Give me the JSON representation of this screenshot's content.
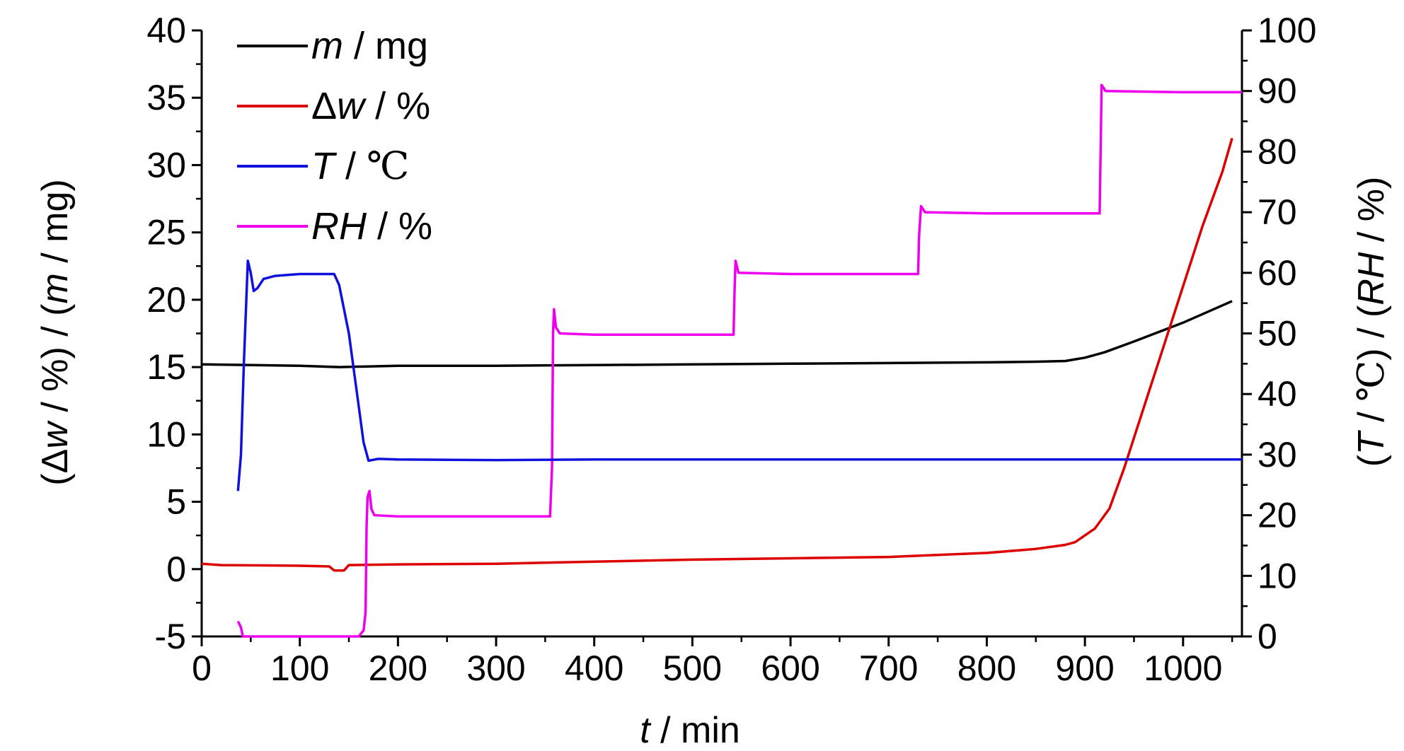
{
  "chart_data": {
    "type": "line",
    "xlabel": {
      "var": "t",
      "unit": " / min"
    },
    "ylabel_left": {
      "open": "(",
      "delta": "Δ",
      "var1": "w",
      "mid": " / %) / (",
      "var2": "m",
      "close": " / mg)"
    },
    "ylabel_right": {
      "open": "(",
      "var1": "T",
      "mid": " / ",
      "unit1": "℃",
      "mid2": ") / (",
      "var2": "RH",
      "close": " / %)"
    },
    "xlim": [
      0,
      1060
    ],
    "xticks": [
      0,
      100,
      200,
      300,
      400,
      500,
      600,
      700,
      800,
      900,
      1000
    ],
    "ylim_left": [
      -5,
      40
    ],
    "yticks_left": [
      -5,
      0,
      5,
      10,
      15,
      20,
      25,
      30,
      35,
      40
    ],
    "ylim_right": [
      0,
      100
    ],
    "yticks_right": [
      0,
      10,
      20,
      30,
      40,
      50,
      60,
      70,
      80,
      90,
      100
    ],
    "legend_position": "top-left",
    "grid": false,
    "series": [
      {
        "var": "m",
        "unit": " / mg",
        "color": "#000000",
        "axis": "left",
        "points": [
          [
            0,
            15.2
          ],
          [
            100,
            15.1
          ],
          [
            140,
            15.0
          ],
          [
            200,
            15.1
          ],
          [
            300,
            15.1
          ],
          [
            400,
            15.15
          ],
          [
            500,
            15.2
          ],
          [
            600,
            15.25
          ],
          [
            700,
            15.3
          ],
          [
            800,
            15.35
          ],
          [
            850,
            15.4
          ],
          [
            880,
            15.45
          ],
          [
            900,
            15.7
          ],
          [
            920,
            16.1
          ],
          [
            950,
            16.9
          ],
          [
            1000,
            18.3
          ],
          [
            1050,
            19.9
          ]
        ]
      },
      {
        "var": "Δw",
        "unit": " / %",
        "color": "#dd0000",
        "axis": "left",
        "points": [
          [
            0,
            0.4
          ],
          [
            20,
            0.3
          ],
          [
            100,
            0.25
          ],
          [
            130,
            0.2
          ],
          [
            135,
            -0.1
          ],
          [
            145,
            -0.1
          ],
          [
            150,
            0.3
          ],
          [
            200,
            0.35
          ],
          [
            300,
            0.4
          ],
          [
            400,
            0.55
          ],
          [
            500,
            0.7
          ],
          [
            600,
            0.8
          ],
          [
            700,
            0.9
          ],
          [
            800,
            1.2
          ],
          [
            850,
            1.5
          ],
          [
            880,
            1.8
          ],
          [
            890,
            2.0
          ],
          [
            910,
            3.0
          ],
          [
            925,
            4.5
          ],
          [
            940,
            7.5
          ],
          [
            960,
            12.0
          ],
          [
            980,
            16.5
          ],
          [
            1000,
            21.0
          ],
          [
            1020,
            25.5
          ],
          [
            1040,
            29.5
          ],
          [
            1050,
            32.0
          ]
        ]
      },
      {
        "var": "T",
        "unit": " / ",
        "unitSymbol": "℃",
        "color": "#1111dd",
        "axis": "right",
        "points": [
          [
            37,
            24
          ],
          [
            40,
            30
          ],
          [
            43,
            45
          ],
          [
            47,
            62
          ],
          [
            50,
            60
          ],
          [
            53,
            57
          ],
          [
            57,
            57.5
          ],
          [
            63,
            59
          ],
          [
            75,
            59.5
          ],
          [
            100,
            59.8
          ],
          [
            135,
            59.8
          ],
          [
            140,
            58
          ],
          [
            150,
            50
          ],
          [
            160,
            38
          ],
          [
            165,
            32
          ],
          [
            170,
            29
          ],
          [
            180,
            29.3
          ],
          [
            200,
            29.2
          ],
          [
            300,
            29.1
          ],
          [
            400,
            29.2
          ],
          [
            500,
            29.2
          ],
          [
            600,
            29.2
          ],
          [
            700,
            29.2
          ],
          [
            800,
            29.2
          ],
          [
            900,
            29.2
          ],
          [
            1000,
            29.2
          ],
          [
            1060,
            29.2
          ]
        ]
      },
      {
        "var": "RH",
        "unit": " / %",
        "color": "#ee00ee",
        "axis": "right",
        "points": [
          [
            37,
            2.5
          ],
          [
            40,
            1.5
          ],
          [
            42,
            0
          ],
          [
            100,
            0
          ],
          [
            150,
            0
          ],
          [
            160,
            0
          ],
          [
            165,
            1
          ],
          [
            167,
            4
          ],
          [
            168,
            18
          ],
          [
            169,
            23
          ],
          [
            171,
            24
          ],
          [
            173,
            21
          ],
          [
            176,
            20
          ],
          [
            200,
            19.8
          ],
          [
            300,
            19.8
          ],
          [
            355,
            19.8
          ],
          [
            357,
            28
          ],
          [
            358,
            50
          ],
          [
            359,
            54
          ],
          [
            361,
            51
          ],
          [
            365,
            50
          ],
          [
            400,
            49.8
          ],
          [
            500,
            49.8
          ],
          [
            542,
            49.8
          ],
          [
            543,
            57
          ],
          [
            544,
            62
          ],
          [
            547,
            60
          ],
          [
            600,
            59.8
          ],
          [
            700,
            59.8
          ],
          [
            730,
            59.8
          ],
          [
            731,
            66
          ],
          [
            733,
            71
          ],
          [
            737,
            70
          ],
          [
            800,
            69.8
          ],
          [
            900,
            69.8
          ],
          [
            915,
            69.8
          ],
          [
            916,
            80
          ],
          [
            917,
            91
          ],
          [
            921,
            90
          ],
          [
            1000,
            89.8
          ],
          [
            1060,
            89.8
          ]
        ]
      }
    ]
  }
}
